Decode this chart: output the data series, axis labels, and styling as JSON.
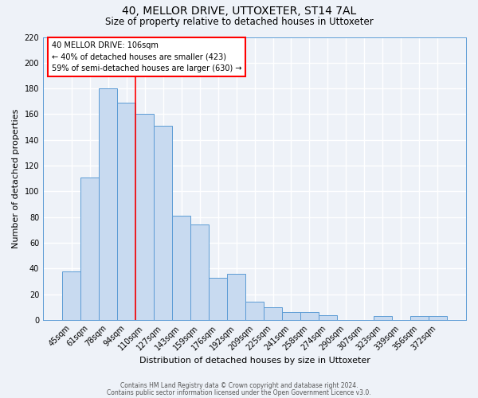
{
  "title": "40, MELLOR DRIVE, UTTOXETER, ST14 7AL",
  "subtitle": "Size of property relative to detached houses in Uttoxeter",
  "xlabel": "Distribution of detached houses by size in Uttoxeter",
  "ylabel": "Number of detached properties",
  "categories": [
    "45sqm",
    "61sqm",
    "78sqm",
    "94sqm",
    "110sqm",
    "127sqm",
    "143sqm",
    "159sqm",
    "176sqm",
    "192sqm",
    "209sqm",
    "225sqm",
    "241sqm",
    "258sqm",
    "274sqm",
    "290sqm",
    "307sqm",
    "323sqm",
    "339sqm",
    "356sqm",
    "372sqm"
  ],
  "values": [
    38,
    111,
    180,
    169,
    160,
    151,
    81,
    74,
    33,
    36,
    14,
    10,
    6,
    6,
    4,
    0,
    0,
    3,
    0,
    3,
    3
  ],
  "bar_color": "#c8daf0",
  "bar_edge_color": "#5b9bd5",
  "red_line_index": 3.5,
  "ylim": [
    0,
    220
  ],
  "yticks": [
    0,
    20,
    40,
    60,
    80,
    100,
    120,
    140,
    160,
    180,
    200,
    220
  ],
  "annotation_box_text": "40 MELLOR DRIVE: 106sqm\n← 40% of detached houses are smaller (423)\n59% of semi-detached houses are larger (630) →",
  "footer_line1": "Contains HM Land Registry data © Crown copyright and database right 2024.",
  "footer_line2": "Contains public sector information licensed under the Open Government Licence v3.0.",
  "background_color": "#eef2f8",
  "grid_color": "#ffffff",
  "title_fontsize": 10,
  "subtitle_fontsize": 8.5,
  "tick_fontsize": 7,
  "label_fontsize": 8,
  "footer_fontsize": 5.5
}
